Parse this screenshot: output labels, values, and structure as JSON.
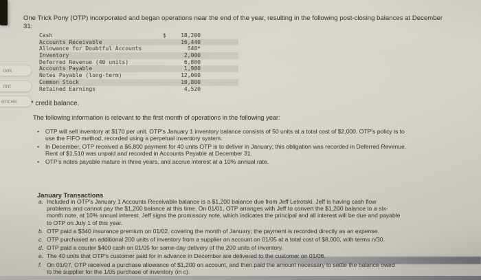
{
  "sidebar": {
    "items": [
      {
        "label": "ook"
      },
      {
        "label": "rint"
      },
      {
        "label": "ences"
      }
    ]
  },
  "problem": {
    "intro": "One Trick Pony (OTP) incorporated and began operations near the end of the year, resulting in the following post-closing balances at December 31:",
    "balances": {
      "currency_symbol": "$",
      "rows": [
        {
          "account": "Cash",
          "amount": "18,200"
        },
        {
          "account": "Accounts Receivable",
          "amount": "16,440"
        },
        {
          "account": "Allowance for Doubtful Accounts",
          "amount": "540*"
        },
        {
          "account": "Inventory",
          "amount": "2,000"
        },
        {
          "account": "Deferred Revenue (40 units)",
          "amount": "6,800"
        },
        {
          "account": "Accounts Payable",
          "amount": "1,980"
        },
        {
          "account": "Notes Payable (long-term)",
          "amount": "12,000"
        },
        {
          "account": "Common Stock",
          "amount": "10,800"
        },
        {
          "account": "Retained Earnings",
          "amount": "4,520"
        }
      ],
      "footnote": "* credit balance."
    },
    "lead": "The following information is relevant to the first month of operations in the following year:",
    "bullet_char": "•",
    "bullets": [
      {
        "text": "OTP will sell inventory at $170 per unit. OTP's January 1 inventory balance consists of 50 units at a total cost of $2,000. OTP's policy is to use the FIFO method, recorded using a perpetual inventory system."
      },
      {
        "text": "In December, OTP received a $6,800 payment for 40 units OTP is to deliver in January; this obligation was recorded in Deferred Revenue. Rent of $1,510 was unpaid and recorded in Accounts Payable at December 31."
      },
      {
        "text": "OTP's notes payable mature in three years, and accrue interest at a 10% annual rate."
      }
    ],
    "transactions": {
      "heading": "January Transactions",
      "items": [
        {
          "letter": "a.",
          "text": "Included in OTP's January 1 Accounts Receivable balance is a $1,200 balance due from Jeff Letrotski. Jeff is having cash flow problems and cannot pay the $1,200 balance at this time. On 01/01, OTP arranges with Jeff to convert the $1,200 balance to a six-month note, at 10% annual interest. Jeff signs the promissory note, which indicates the principal and all interest will be due and payable to OTP on July 1 of this year."
        },
        {
          "letter": "b.",
          "text": "OTP paid a $340 insurance premium on 01/02, covering the month of January; the payment is recorded directly as an expense."
        },
        {
          "letter": "c.",
          "text": "OTP purchased an additional 200 units of inventory from a supplier on account on 01/05 at a total cost of $8,000, with terms n/30."
        },
        {
          "letter": "d.",
          "text": "OTP paid a courier $400 cash on 01/05 for same-day delivery of the 200 units of inventory."
        },
        {
          "letter": "e.",
          "text": "The 40 units that OTP's customer paid for in advance in December are delivered to the customer on 01/06."
        },
        {
          "letter": "f.",
          "text": "On 01/07, OTP received a purchase allowance of $1,200 on account, and then paid the amount necessary to settle the balance owed to the supplier for the 1/05 purchase of inventory (in c)."
        }
      ]
    }
  }
}
